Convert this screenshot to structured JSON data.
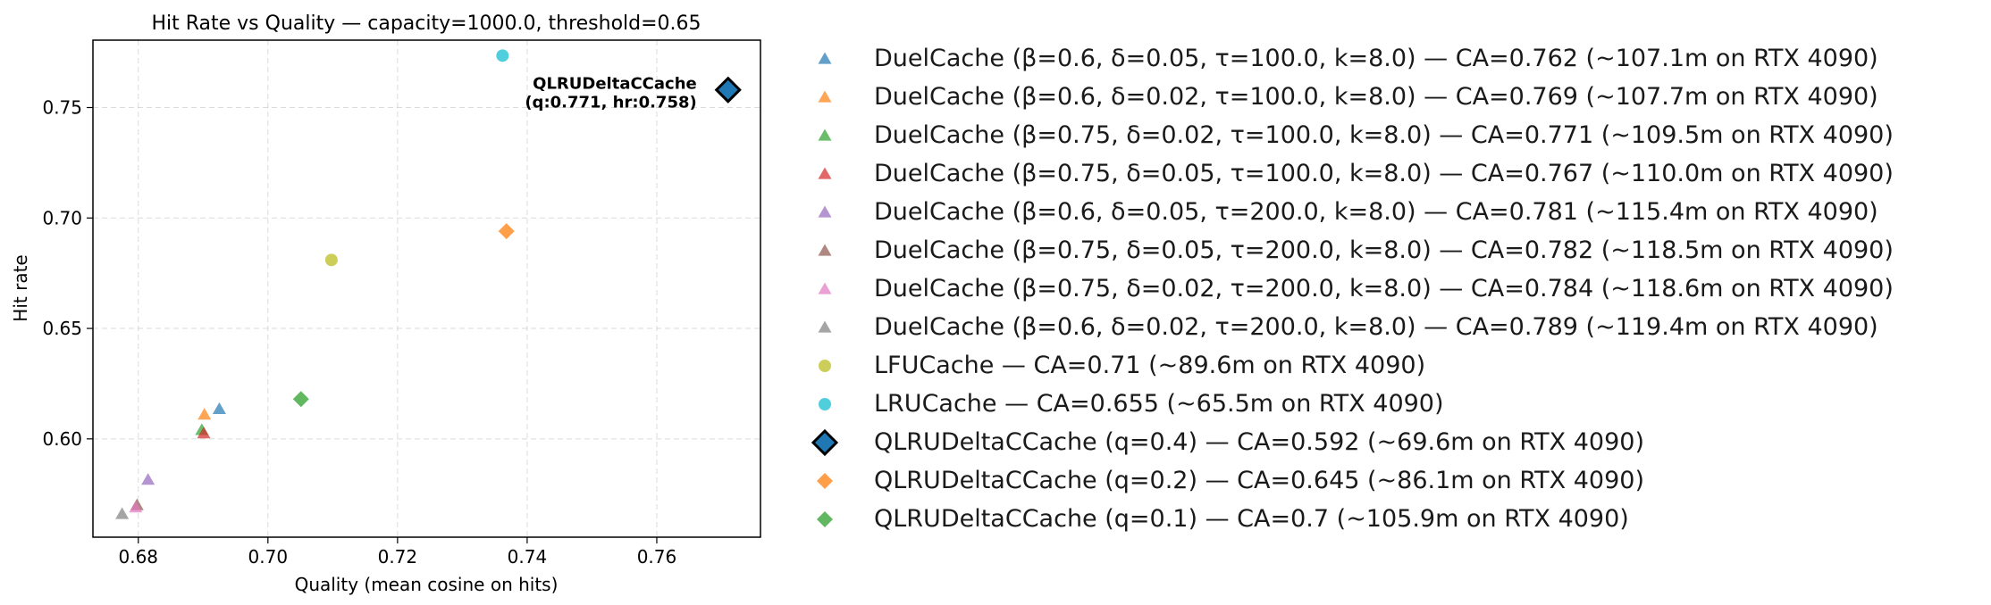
{
  "chart_data": {
    "type": "scatter",
    "title": "Hit Rate vs Quality — capacity=1000.0, threshold=0.65",
    "xlabel": "Quality (mean cosine on hits)",
    "ylabel": "Hit rate",
    "xlim": [
      0.673,
      0.776
    ],
    "ylim": [
      0.5555,
      0.7805
    ],
    "xticks": [
      0.68,
      0.7,
      0.72,
      0.74,
      0.76
    ],
    "xtick_labels": [
      "0.68",
      "0.70",
      "0.72",
      "0.74",
      "0.76"
    ],
    "yticks": [
      0.6,
      0.65,
      0.7,
      0.75
    ],
    "ytick_labels": [
      "0.60",
      "0.65",
      "0.70",
      "0.75"
    ],
    "grid": true,
    "legend_placement": "outside-right",
    "series": [
      {
        "name": "DuelCache (β=0.6, δ=0.05, τ=100.0, k=8.0) — CA=0.762 (~107.1m on RTX 4090)",
        "marker": "triangle",
        "color": "#1f77b4",
        "x": 0.6925,
        "y": 0.6135
      },
      {
        "name": "DuelCache (β=0.6, δ=0.02, τ=100.0, k=8.0) — CA=0.769 (~107.7m on RTX 4090)",
        "marker": "triangle",
        "color": "#ff7f0e",
        "x": 0.6902,
        "y": 0.611
      },
      {
        "name": "DuelCache (β=0.75, δ=0.02, τ=100.0, k=8.0) — CA=0.771 (~109.5m on RTX 4090)",
        "marker": "triangle",
        "color": "#2ca02c",
        "x": 0.6898,
        "y": 0.604
      },
      {
        "name": "DuelCache (β=0.75, δ=0.05, τ=100.0, k=8.0) — CA=0.767 (~110.0m on RTX 4090)",
        "marker": "triangle",
        "color": "#d62728",
        "x": 0.6901,
        "y": 0.6025
      },
      {
        "name": "DuelCache (β=0.6, δ=0.05, τ=200.0, k=8.0) — CA=0.781 (~115.4m on RTX 4090)",
        "marker": "triangle",
        "color": "#9467bd",
        "x": 0.6815,
        "y": 0.5815
      },
      {
        "name": "DuelCache (β=0.75, δ=0.05, τ=200.0, k=8.0) — CA=0.782 (~118.5m on RTX 4090)",
        "marker": "triangle",
        "color": "#8c564b",
        "x": 0.6798,
        "y": 0.57
      },
      {
        "name": "DuelCache (β=0.75, δ=0.02, τ=200.0, k=8.0) — CA=0.784 (~118.6m on RTX 4090)",
        "marker": "triangle",
        "color": "#e377c2",
        "x": 0.6796,
        "y": 0.569
      },
      {
        "name": "DuelCache (β=0.6, δ=0.02, τ=200.0, k=8.0) — CA=0.789 (~119.4m on RTX 4090)",
        "marker": "triangle",
        "color": "#7f7f7f",
        "x": 0.6775,
        "y": 0.566
      },
      {
        "name": "LFUCache — CA=0.71 (~89.6m on RTX 4090)",
        "marker": "circle",
        "color": "#bcbd22",
        "x": 0.7098,
        "y": 0.681
      },
      {
        "name": "LRUCache — CA=0.655 (~65.5m on RTX 4090)",
        "marker": "circle",
        "color": "#17becf",
        "x": 0.7362,
        "y": 0.7735
      },
      {
        "name": "QLRUDeltaCCache (q=0.4) — CA=0.592 (~69.6m on RTX 4090)",
        "marker": "diamond-large",
        "color": "#1f77b4",
        "x": 0.771,
        "y": 0.758
      },
      {
        "name": "QLRUDeltaCCache (q=0.2) — CA=0.645 (~86.1m on RTX 4090)",
        "marker": "diamond",
        "color": "#ff7f0e",
        "x": 0.7368,
        "y": 0.694
      },
      {
        "name": "QLRUDeltaCCache (q=0.1) — CA=0.7 (~105.9m on RTX 4090)",
        "marker": "diamond",
        "color": "#2ca02c",
        "x": 0.7051,
        "y": 0.618
      }
    ],
    "annotations": [
      {
        "lines": [
          "QLRUDeltaCCache",
          "(q:0.771, hr:0.758)"
        ],
        "target_series": 10
      }
    ]
  }
}
